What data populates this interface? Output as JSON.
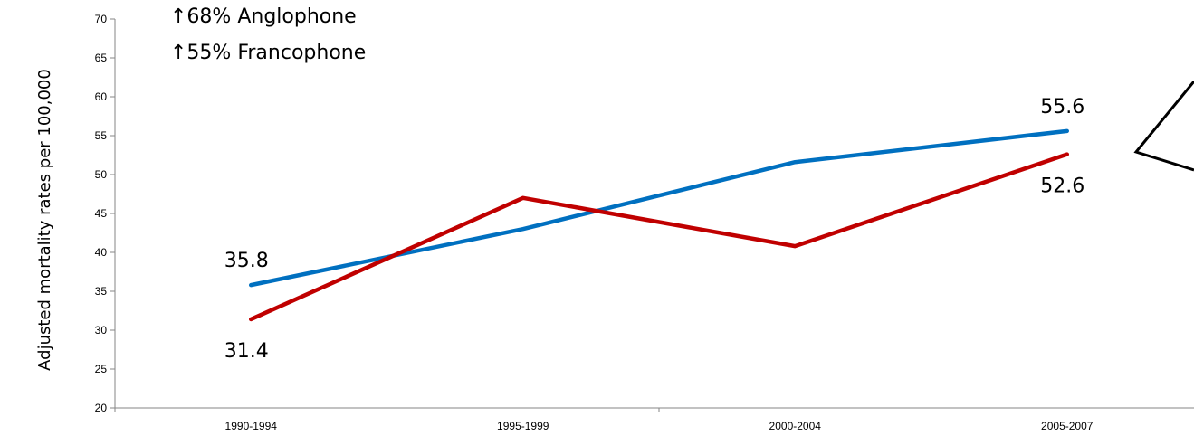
{
  "chart_data": {
    "type": "line",
    "title": "",
    "ylabel": "Adjusted mortality rates per 100,000",
    "xlabel": "",
    "categories": [
      "1990-1994",
      "1995-1999",
      "2000-2004",
      "2005-2007"
    ],
    "ylim": [
      20,
      70
    ],
    "yticks": [
      20,
      25,
      30,
      35,
      40,
      45,
      50,
      55,
      60,
      65,
      70
    ],
    "grid": false,
    "series": [
      {
        "values": [
          35.8,
          43.0,
          51.6,
          55.6
        ],
        "color": "#0070C0"
      },
      {
        "values": [
          31.4,
          47.0,
          40.8,
          52.6
        ],
        "color": "#C00000"
      }
    ],
    "data_labels": [
      {
        "series": 0,
        "index": 0,
        "text": "35.8"
      },
      {
        "series": 0,
        "index": 3,
        "text": "55.6"
      },
      {
        "series": 1,
        "index": 0,
        "text": "31.4"
      },
      {
        "series": 1,
        "index": 3,
        "text": "52.6"
      }
    ],
    "annotations": [
      "↑68% Anglophone",
      "↑55% Francophone"
    ]
  }
}
